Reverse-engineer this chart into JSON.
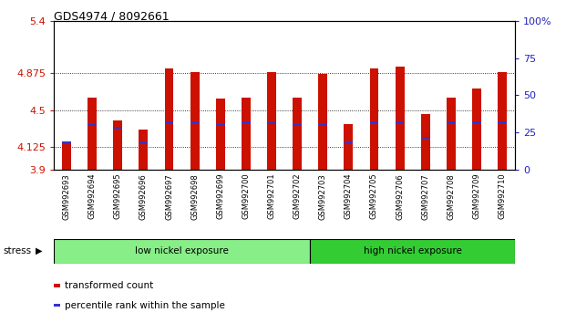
{
  "title": "GDS4974 / 8092661",
  "samples": [
    "GSM992693",
    "GSM992694",
    "GSM992695",
    "GSM992696",
    "GSM992697",
    "GSM992698",
    "GSM992699",
    "GSM992700",
    "GSM992701",
    "GSM992702",
    "GSM992703",
    "GSM992704",
    "GSM992705",
    "GSM992706",
    "GSM992707",
    "GSM992708",
    "GSM992709",
    "GSM992710"
  ],
  "red_values": [
    4.16,
    4.63,
    4.4,
    4.3,
    4.92,
    4.88,
    4.62,
    4.63,
    4.88,
    4.63,
    4.87,
    4.36,
    4.92,
    4.94,
    4.46,
    4.63,
    4.72,
    4.88
  ],
  "blue_values": [
    4.17,
    4.35,
    4.32,
    4.17,
    4.38,
    4.38,
    4.35,
    4.38,
    4.37,
    4.35,
    4.35,
    4.17,
    4.38,
    4.38,
    4.22,
    4.38,
    4.38,
    4.38
  ],
  "ymin": 3.9,
  "ymax": 5.4,
  "yticks": [
    3.9,
    4.125,
    4.5,
    4.875,
    5.4
  ],
  "ytick_labels": [
    "3.9",
    "4.125",
    "4.5",
    "4.875",
    "5.4"
  ],
  "y2ticks": [
    0,
    25,
    50,
    75,
    100
  ],
  "y2tick_labels": [
    "0",
    "25",
    "50",
    "75",
    "100%"
  ],
  "group1_label": "low nickel exposure",
  "group2_label": "high nickel exposure",
  "group1_count": 10,
  "group2_count": 8,
  "stress_label": "stress",
  "legend1": "transformed count",
  "legend2": "percentile rank within the sample",
  "bar_color": "#cc1100",
  "blue_color": "#3333cc",
  "group1_color": "#88ee88",
  "group2_color": "#33cc33",
  "plot_bg": "#ffffff",
  "axis_color_left": "#cc1100",
  "axis_color_right": "#2222bb",
  "xtick_bg": "#cccccc"
}
